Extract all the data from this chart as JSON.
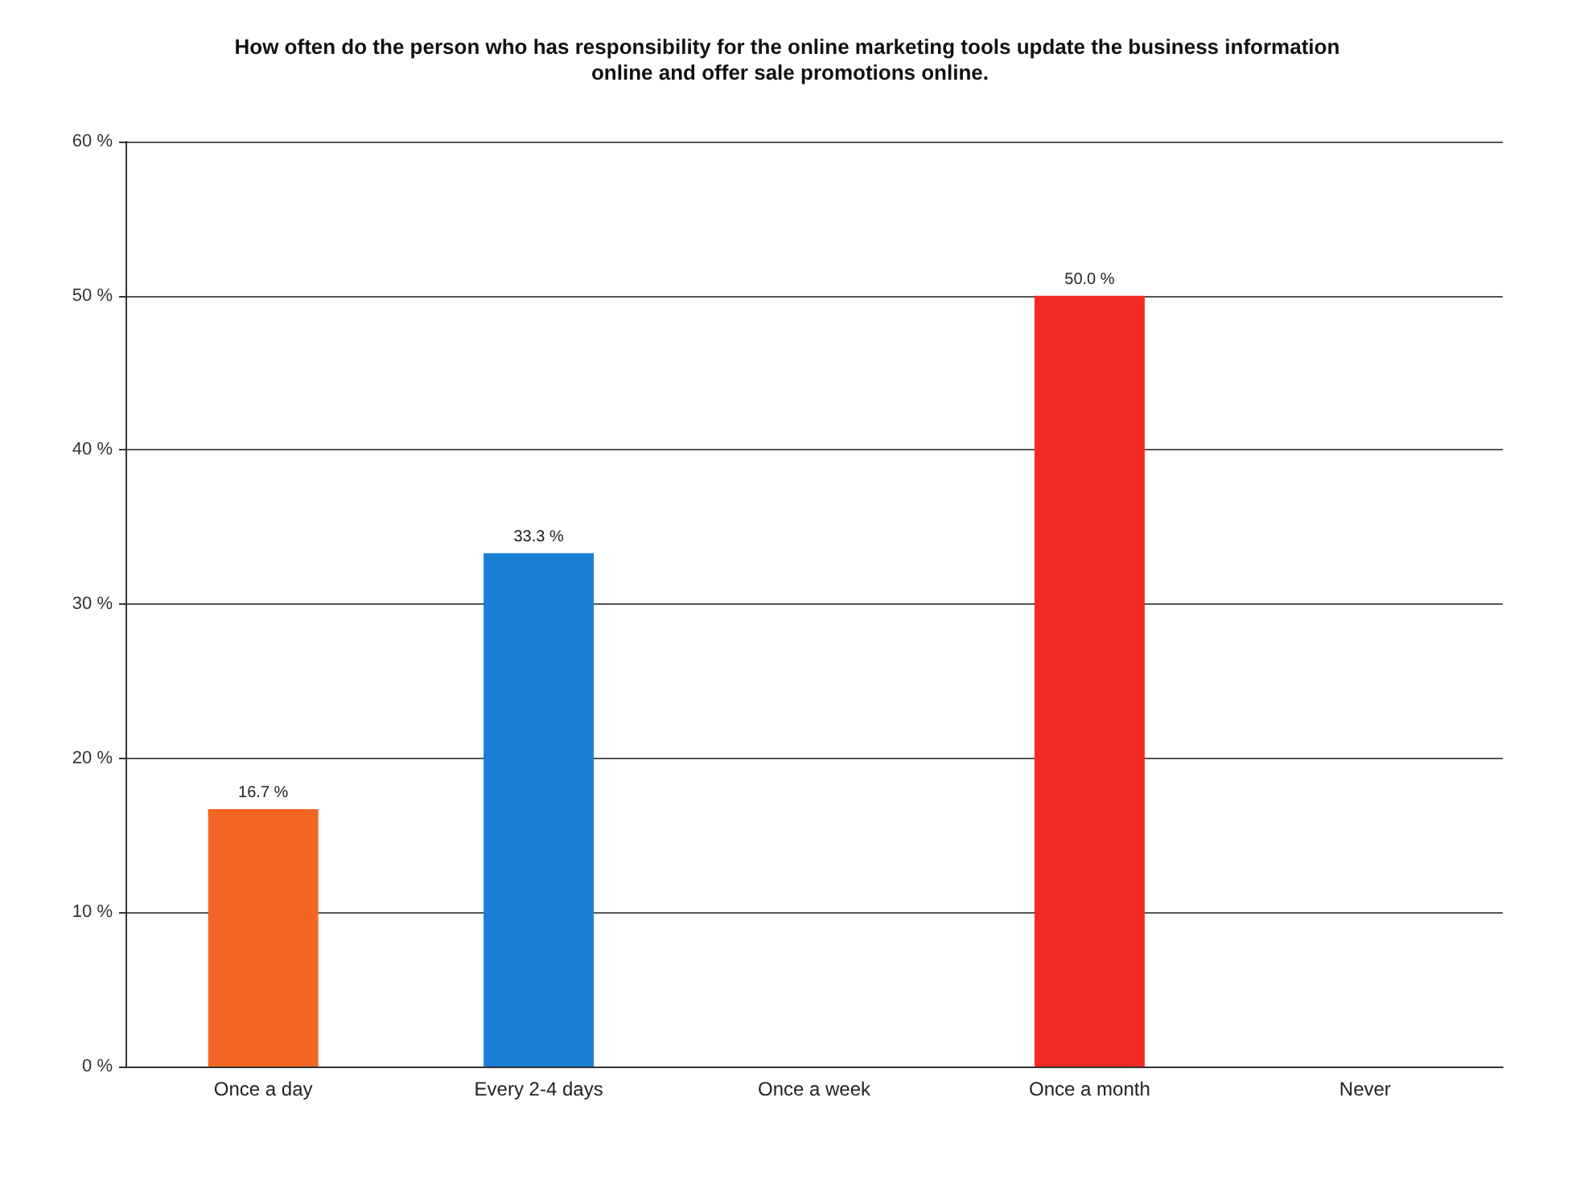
{
  "chart_data": {
    "type": "bar",
    "title": "How often do the person who has responsibility for the online marketing tools update the business information online and offer sale promotions online.",
    "categories": [
      "Once a day",
      "Every 2-4 days",
      "Once a week",
      "Once a month",
      "Never"
    ],
    "values": [
      16.7,
      33.3,
      0,
      50.0,
      0
    ],
    "colors": [
      "#f26522",
      "#1a7fd4",
      "#1a7fd4",
      "#f22a22",
      "#f22a22"
    ],
    "value_labels": [
      "16.7 %",
      "33.3 %",
      null,
      "50.0 %",
      null
    ],
    "ylim": [
      0,
      60
    ],
    "yticks": [
      {
        "value": 0,
        "label": "0 %"
      },
      {
        "value": 10,
        "label": "10 %"
      },
      {
        "value": 20,
        "label": "20 %"
      },
      {
        "value": 30,
        "label": "30 %"
      },
      {
        "value": 40,
        "label": "40 %"
      },
      {
        "value": 50,
        "label": "50 %"
      },
      {
        "value": 60,
        "label": "60 %"
      }
    ],
    "grid": "y"
  }
}
